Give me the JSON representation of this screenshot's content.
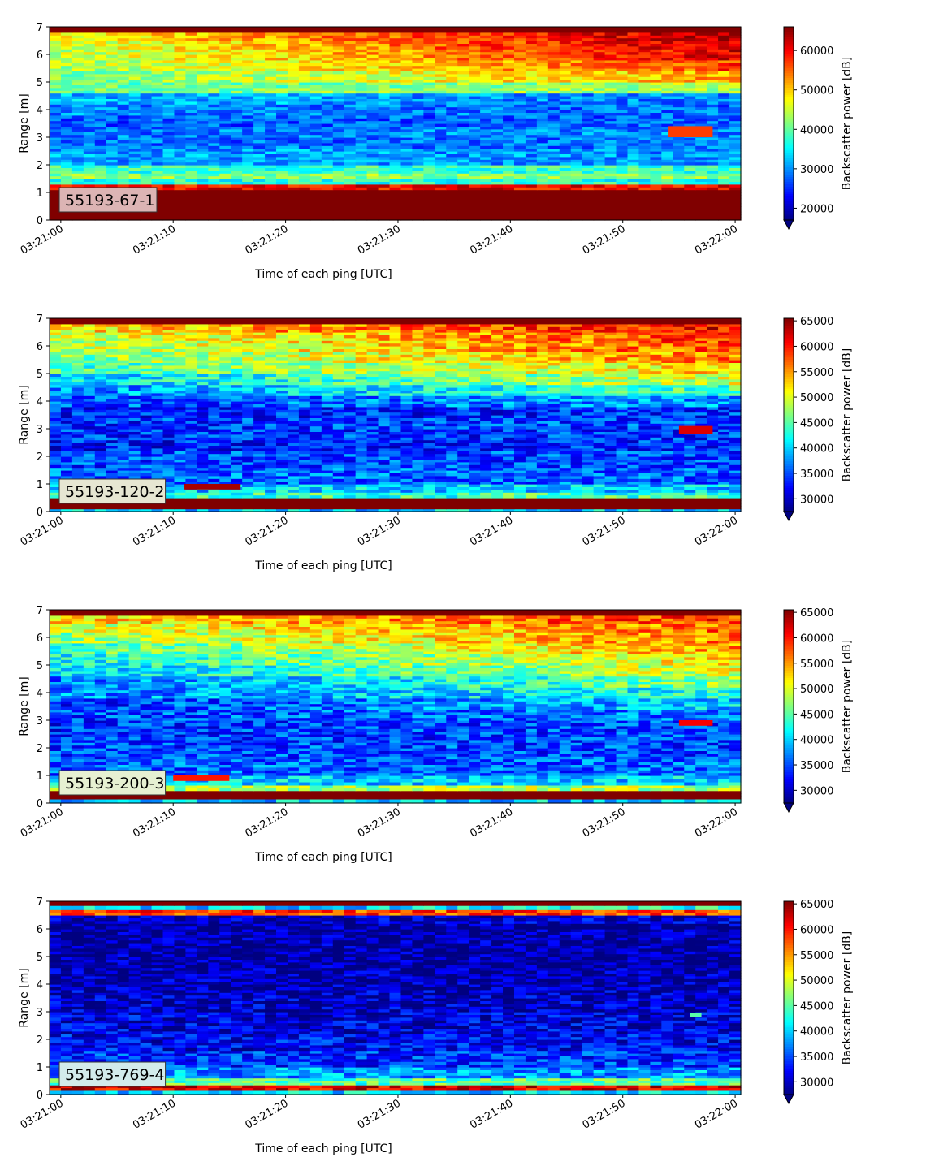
{
  "chart_data": [
    {
      "type": "heatmap",
      "label": "55193-67-1",
      "label_bg": "#dcb4b4",
      "xlabel": "Time of each ping [UTC]",
      "ylabel": "Range [m]",
      "colorbar_label": "Backscatter power [dB]",
      "x_ticks": [
        "03:21:00",
        "03:21:10",
        "03:21:20",
        "03:21:30",
        "03:21:40",
        "03:21:50",
        "03:22:00"
      ],
      "xlim": [
        "03:20:59",
        "03:22:00.5"
      ],
      "y_ticks": [
        0,
        1,
        2,
        3,
        4,
        5,
        6,
        7
      ],
      "ylim": [
        0,
        7
      ],
      "colorbar_ticks": [
        20000,
        30000,
        40000,
        50000,
        60000
      ],
      "clim": [
        17000,
        66000
      ],
      "colormap": "jet",
      "colorbar_extend": "min",
      "rows": [
        [
          0.0,
          0.2,
          66000,
          66000
        ],
        [
          0.2,
          1.1,
          66000,
          66000
        ],
        [
          1.1,
          1.3,
          60000,
          60000
        ],
        [
          1.3,
          1.5,
          37000,
          37000
        ],
        [
          1.5,
          1.7,
          42000,
          42000
        ],
        [
          1.7,
          2.0,
          38000,
          38000
        ],
        [
          2.0,
          2.6,
          31000,
          30000
        ],
        [
          2.6,
          3.0,
          28000,
          29000
        ],
        [
          3.0,
          3.4,
          29000,
          30000
        ],
        [
          3.4,
          3.8,
          27000,
          28000
        ],
        [
          3.8,
          4.2,
          30000,
          28000
        ],
        [
          4.2,
          4.6,
          32000,
          29000
        ],
        [
          4.6,
          5.0,
          40000,
          44000
        ],
        [
          5.0,
          5.4,
          41000,
          52000
        ],
        [
          5.4,
          5.8,
          43000,
          57000
        ],
        [
          5.8,
          6.2,
          44000,
          61000
        ],
        [
          6.2,
          6.5,
          45000,
          63000
        ],
        [
          6.5,
          6.8,
          47000,
          64000
        ],
        [
          6.8,
          7.0,
          66000,
          66000
        ]
      ],
      "features": [
        {
          "t0": 54,
          "t1": 58,
          "y0": 3.0,
          "y1": 3.4,
          "value": 57000
        }
      ]
    },
    {
      "type": "heatmap",
      "label": "55193-120-2",
      "label_bg": "#e6e6d2",
      "xlabel": "Time of each ping [UTC]",
      "ylabel": "Range [m]",
      "colorbar_label": "Backscatter power [dB]",
      "x_ticks": [
        "03:21:00",
        "03:21:10",
        "03:21:20",
        "03:21:30",
        "03:21:40",
        "03:21:50",
        "03:22:00"
      ],
      "xlim": [
        "03:20:59",
        "03:22:00.5"
      ],
      "y_ticks": [
        0,
        1,
        2,
        3,
        4,
        5,
        6,
        7
      ],
      "ylim": [
        0,
        7
      ],
      "colorbar_ticks": [
        30000,
        35000,
        40000,
        45000,
        50000,
        55000,
        60000,
        65000
      ],
      "clim": [
        27500,
        65500
      ],
      "colormap": "jet",
      "colorbar_extend": "min",
      "rows": [
        [
          0.0,
          0.1,
          40000,
          40000
        ],
        [
          0.1,
          0.5,
          65500,
          65500
        ],
        [
          0.5,
          0.7,
          44000,
          44000
        ],
        [
          0.7,
          1.0,
          40000,
          40000
        ],
        [
          1.0,
          1.6,
          36000,
          36000
        ],
        [
          1.6,
          2.2,
          35000,
          35000
        ],
        [
          2.2,
          2.6,
          33000,
          34000
        ],
        [
          2.6,
          3.0,
          34000,
          34000
        ],
        [
          3.0,
          3.4,
          34000,
          35000
        ],
        [
          3.4,
          3.8,
          33000,
          34000
        ],
        [
          3.8,
          4.2,
          35000,
          38000
        ],
        [
          4.2,
          4.6,
          37000,
          45000
        ],
        [
          4.6,
          5.0,
          40000,
          50000
        ],
        [
          5.0,
          5.4,
          44000,
          53000
        ],
        [
          5.4,
          5.8,
          46000,
          56000
        ],
        [
          5.8,
          6.2,
          48000,
          58000
        ],
        [
          6.2,
          6.5,
          49000,
          59000
        ],
        [
          6.5,
          6.8,
          52000,
          61000
        ],
        [
          6.8,
          7.0,
          65500,
          65500
        ]
      ],
      "features": [
        {
          "t0": 11,
          "t1": 16,
          "y0": 0.8,
          "y1": 1.0,
          "value": 64000
        },
        {
          "t0": 55,
          "t1": 58,
          "y0": 2.8,
          "y1": 3.1,
          "value": 62000
        }
      ]
    },
    {
      "type": "heatmap",
      "label": "55193-200-3",
      "label_bg": "#e6f0d2",
      "xlabel": "Time of each ping [UTC]",
      "ylabel": "Range [m]",
      "colorbar_label": "Backscatter power [dB]",
      "x_ticks": [
        "03:21:00",
        "03:21:10",
        "03:21:20",
        "03:21:30",
        "03:21:40",
        "03:21:50",
        "03:22:00"
      ],
      "xlim": [
        "03:20:59",
        "03:22:00.5"
      ],
      "y_ticks": [
        0,
        1,
        2,
        3,
        4,
        5,
        6,
        7
      ],
      "ylim": [
        0,
        7
      ],
      "colorbar_ticks": [
        30000,
        35000,
        40000,
        45000,
        50000,
        55000,
        60000,
        65000
      ],
      "clim": [
        27500,
        65500
      ],
      "colormap": "jet",
      "colorbar_extend": "min",
      "rows": [
        [
          0.0,
          0.15,
          40000,
          40000
        ],
        [
          0.15,
          0.45,
          65500,
          65500
        ],
        [
          0.45,
          0.65,
          48000,
          48000
        ],
        [
          0.65,
          1.0,
          40000,
          40000
        ],
        [
          1.0,
          1.6,
          36000,
          36000
        ],
        [
          1.6,
          2.2,
          35000,
          35000
        ],
        [
          2.2,
          2.6,
          34000,
          35000
        ],
        [
          2.6,
          3.0,
          34000,
          35000
        ],
        [
          3.0,
          3.4,
          35000,
          37000
        ],
        [
          3.4,
          3.8,
          34000,
          40000
        ],
        [
          3.8,
          4.2,
          37000,
          43000
        ],
        [
          4.2,
          4.6,
          36000,
          47000
        ],
        [
          4.6,
          5.0,
          40000,
          50000
        ],
        [
          5.0,
          5.4,
          42000,
          52000
        ],
        [
          5.4,
          5.8,
          44000,
          55000
        ],
        [
          5.8,
          6.2,
          47000,
          56000
        ],
        [
          6.2,
          6.5,
          49000,
          57000
        ],
        [
          6.5,
          6.8,
          52000,
          59000
        ],
        [
          6.8,
          7.0,
          65500,
          65500
        ]
      ],
      "features": [
        {
          "t0": 10,
          "t1": 15,
          "y0": 0.8,
          "y1": 1.0,
          "value": 60000
        },
        {
          "t0": 55,
          "t1": 58,
          "y0": 2.8,
          "y1": 3.0,
          "value": 61000
        }
      ]
    },
    {
      "type": "heatmap",
      "label": "55193-769-4",
      "label_bg": "#d2ebeb",
      "xlabel": "Time of each ping [UTC]",
      "ylabel": "Range [m]",
      "colorbar_label": "Backscatter power [dB]",
      "x_ticks": [
        "03:21:00",
        "03:21:10",
        "03:21:20",
        "03:21:30",
        "03:21:40",
        "03:21:50",
        "03:22:00"
      ],
      "xlim": [
        "03:20:59",
        "03:22:00.5"
      ],
      "y_ticks": [
        0,
        1,
        2,
        3,
        4,
        5,
        6,
        7
      ],
      "ylim": [
        0,
        7
      ],
      "colorbar_ticks": [
        30000,
        35000,
        40000,
        45000,
        50000,
        55000,
        60000,
        65000
      ],
      "clim": [
        27500,
        65500
      ],
      "colormap": "jet",
      "colorbar_extend": "min",
      "rows": [
        [
          0.0,
          0.15,
          40000,
          40000
        ],
        [
          0.15,
          0.35,
          62000,
          62000
        ],
        [
          0.35,
          0.6,
          45000,
          45000
        ],
        [
          0.6,
          1.0,
          38000,
          38000
        ],
        [
          1.0,
          1.6,
          34000,
          34000
        ],
        [
          1.6,
          2.2,
          32000,
          32000
        ],
        [
          2.2,
          3.0,
          31000,
          31000
        ],
        [
          3.0,
          3.8,
          30000,
          30000
        ],
        [
          3.8,
          4.6,
          29000,
          29000
        ],
        [
          4.6,
          5.4,
          28500,
          28500
        ],
        [
          5.4,
          6.2,
          28500,
          29000
        ],
        [
          6.2,
          6.5,
          29000,
          31000
        ],
        [
          6.5,
          6.7,
          58000,
          58000
        ],
        [
          6.7,
          6.85,
          40000,
          42000
        ],
        [
          6.85,
          7.0,
          65500,
          65500
        ]
      ],
      "features": [
        {
          "t0": 56,
          "t1": 57,
          "y0": 2.8,
          "y1": 2.95,
          "value": 45000
        }
      ]
    }
  ]
}
